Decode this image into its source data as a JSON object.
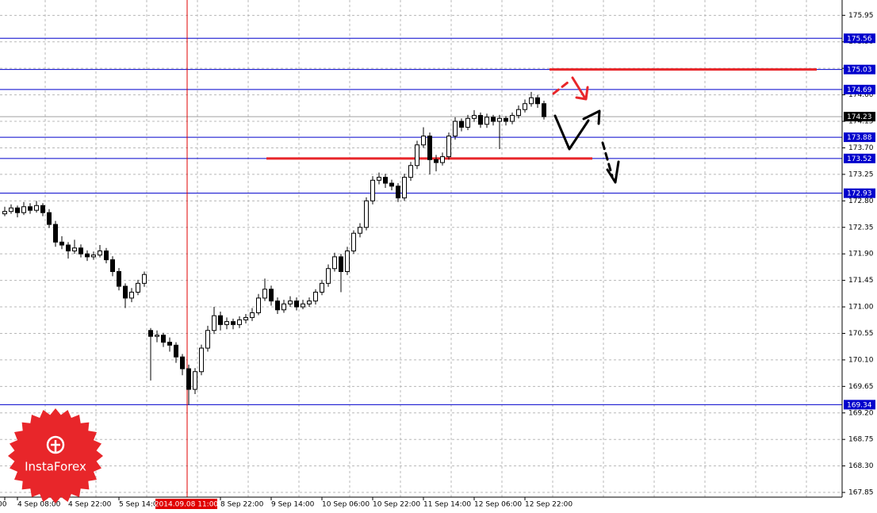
{
  "chart_data": {
    "type": "candlestick",
    "ylim": [
      167.77,
      176.21
    ],
    "yticks": [
      167.85,
      {
        "value": 168.3,
        "label": "168.30"
      },
      168.75,
      {
        "value": 169.2,
        "label": "169.20"
      },
      169.65,
      {
        "value": 170.1,
        "label": "170.10"
      },
      170.55,
      {
        "value": 171,
        "label": "171.00"
      },
      171.45,
      {
        "value": 171.9,
        "label": "171.90"
      },
      172.35,
      {
        "value": 172.8,
        "label": "172.80"
      },
      173.25,
      {
        "value": 173.7,
        "label": "173.70"
      },
      174.15,
      {
        "value": 174.6,
        "label": "174.60"
      },
      175.05,
      {
        "value": 175.5,
        "label": "175.50"
      },
      175.95
    ],
    "grid": true,
    "categories": [
      "00",
      null,
      "4 Sep 08:00",
      null,
      null,
      null,
      null,
      null,
      null,
      null,
      "4 Sep 22:00",
      null,
      null,
      null,
      null,
      null,
      null,
      null,
      "5 Sep 14:00",
      null,
      null,
      null,
      null,
      null,
      null,
      null,
      null,
      null,
      null,
      "2014.09.08 11:00",
      null,
      null,
      null,
      null,
      "8 Sep 22:00",
      null,
      null,
      null,
      null,
      null,
      null,
      null,
      "9 Sep 14:00",
      null,
      null,
      null,
      null,
      null,
      null,
      null,
      "10 Sep 06:00",
      null,
      null,
      null,
      null,
      null,
      null,
      null,
      "10 Sep 22:00",
      null,
      null,
      null,
      null,
      null,
      null,
      null,
      "11 Sep 14:00",
      null,
      null,
      null,
      null,
      null,
      null,
      null,
      "12 Sep 06:00",
      null,
      null,
      null,
      null,
      null,
      null,
      null,
      "12 Sep 22:00",
      null,
      null,
      null
    ],
    "candles": [
      [
        172.58,
        172.7,
        172.54,
        172.62
      ],
      [
        172.62,
        172.74,
        172.58,
        172.68
      ],
      [
        172.68,
        172.72,
        172.52,
        172.6
      ],
      [
        172.6,
        172.78,
        172.56,
        172.7
      ],
      [
        172.7,
        172.76,
        172.58,
        172.64
      ],
      [
        172.64,
        172.8,
        172.6,
        172.72
      ],
      [
        172.72,
        172.76,
        172.54,
        172.6
      ],
      [
        172.6,
        172.66,
        172.34,
        172.4
      ],
      [
        172.4,
        172.46,
        172.02,
        172.1
      ],
      [
        172.1,
        172.2,
        171.98,
        172.05
      ],
      [
        172.05,
        172.1,
        171.82,
        171.95
      ],
      [
        171.95,
        172.14,
        171.9,
        172.0
      ],
      [
        172.0,
        172.06,
        171.84,
        171.9
      ],
      [
        171.9,
        171.96,
        171.78,
        171.85
      ],
      [
        171.85,
        171.94,
        171.8,
        171.88
      ],
      [
        171.88,
        172.05,
        171.84,
        171.95
      ],
      [
        171.95,
        172.0,
        171.74,
        171.8
      ],
      [
        171.8,
        171.86,
        171.52,
        171.6
      ],
      [
        171.6,
        171.66,
        171.28,
        171.35
      ],
      [
        171.35,
        171.4,
        170.98,
        171.15
      ],
      [
        171.15,
        171.32,
        171.08,
        171.25
      ],
      [
        171.25,
        171.46,
        171.2,
        171.4
      ],
      [
        171.4,
        171.6,
        171.34,
        171.55
      ],
      [
        170.6,
        170.64,
        169.75,
        170.5
      ],
      [
        170.5,
        170.6,
        170.4,
        170.52
      ],
      [
        170.52,
        170.56,
        170.32,
        170.4
      ],
      [
        170.4,
        170.48,
        170.24,
        170.35
      ],
      [
        170.35,
        170.4,
        170.05,
        170.15
      ],
      [
        170.15,
        170.2,
        169.84,
        169.95
      ],
      [
        169.95,
        170.02,
        169.34,
        169.6
      ],
      [
        169.6,
        169.96,
        169.52,
        169.9
      ],
      [
        169.9,
        170.36,
        169.84,
        170.3
      ],
      [
        170.3,
        170.68,
        170.24,
        170.6
      ],
      [
        170.6,
        171.0,
        170.54,
        170.85
      ],
      [
        170.85,
        170.92,
        170.6,
        170.7
      ],
      [
        170.7,
        170.82,
        170.62,
        170.75
      ],
      [
        170.75,
        170.8,
        170.62,
        170.7
      ],
      [
        170.7,
        170.84,
        170.64,
        170.78
      ],
      [
        170.78,
        170.88,
        170.72,
        170.82
      ],
      [
        170.82,
        170.98,
        170.76,
        170.9
      ],
      [
        170.9,
        171.22,
        170.86,
        171.15
      ],
      [
        171.15,
        171.48,
        171.1,
        171.3
      ],
      [
        171.3,
        171.36,
        171.02,
        171.1
      ],
      [
        171.1,
        171.16,
        170.88,
        170.95
      ],
      [
        170.95,
        171.12,
        170.9,
        171.05
      ],
      [
        171.05,
        171.18,
        171.0,
        171.1
      ],
      [
        171.1,
        171.16,
        170.94,
        171.0
      ],
      [
        171.0,
        171.12,
        170.96,
        171.05
      ],
      [
        171.05,
        171.16,
        171.0,
        171.1
      ],
      [
        171.1,
        171.3,
        171.04,
        171.25
      ],
      [
        171.25,
        171.46,
        171.2,
        171.4
      ],
      [
        171.4,
        171.72,
        171.34,
        171.65
      ],
      [
        171.65,
        171.92,
        171.6,
        171.85
      ],
      [
        171.85,
        171.9,
        171.25,
        171.6
      ],
      [
        171.6,
        172.02,
        171.54,
        171.95
      ],
      [
        171.95,
        172.3,
        171.9,
        172.25
      ],
      [
        172.25,
        172.42,
        172.18,
        172.35
      ],
      [
        172.35,
        172.86,
        172.3,
        172.8
      ],
      [
        172.8,
        173.22,
        172.74,
        173.15
      ],
      [
        173.15,
        173.28,
        173.08,
        173.2
      ],
      [
        173.2,
        173.26,
        173.02,
        173.1
      ],
      [
        173.1,
        173.16,
        172.98,
        173.05
      ],
      [
        173.05,
        173.1,
        172.78,
        172.85
      ],
      [
        172.85,
        173.26,
        172.8,
        173.2
      ],
      [
        173.2,
        173.46,
        173.14,
        173.4
      ],
      [
        173.4,
        173.82,
        173.34,
        173.75
      ],
      [
        173.75,
        174.05,
        173.7,
        173.9
      ],
      [
        173.9,
        173.96,
        173.25,
        173.5
      ],
      [
        173.5,
        173.58,
        173.3,
        173.45
      ],
      [
        173.45,
        173.62,
        173.4,
        173.55
      ],
      [
        173.55,
        173.96,
        173.5,
        173.9
      ],
      [
        173.9,
        174.22,
        173.84,
        174.15
      ],
      [
        174.15,
        174.2,
        173.98,
        174.05
      ],
      [
        174.05,
        174.26,
        174.0,
        174.2
      ],
      [
        174.2,
        174.34,
        174.14,
        174.25
      ],
      [
        174.25,
        174.3,
        174.04,
        174.1
      ],
      [
        174.1,
        174.28,
        174.04,
        174.22
      ],
      [
        174.22,
        174.26,
        174.08,
        174.15
      ],
      [
        174.15,
        174.26,
        173.68,
        174.2
      ],
      [
        174.2,
        174.24,
        174.08,
        174.15
      ],
      [
        174.15,
        174.3,
        174.1,
        174.25
      ],
      [
        174.25,
        174.42,
        174.2,
        174.35
      ],
      [
        174.35,
        174.52,
        174.3,
        174.45
      ],
      [
        174.45,
        174.65,
        174.4,
        174.55
      ],
      [
        174.55,
        174.6,
        174.38,
        174.45
      ],
      [
        174.45,
        174.5,
        174.18,
        174.23
      ]
    ],
    "bull_color": "#ffffff",
    "bear_color": "#000000",
    "candle_outline": "#000000",
    "levels": [
      175.56,
      175.03,
      174.69,
      173.88,
      173.52,
      172.93,
      169.34
    ],
    "level_color": "#0000cc",
    "current_price": 174.23,
    "vline": {
      "at": "2014.09.08 11:00",
      "color": "#e00000"
    },
    "highlight_color": "#e8262a",
    "watermark": "InstaForex"
  }
}
